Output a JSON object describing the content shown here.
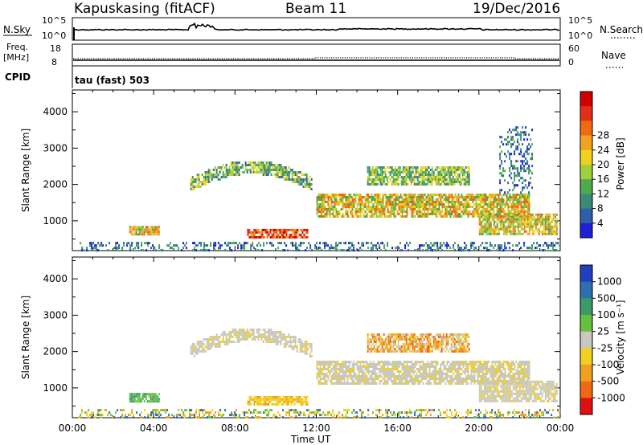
{
  "header": {
    "station": "Kapuskasing (fitACF)",
    "beam": "Beam 11",
    "date": "19/Dec/2016"
  },
  "aux_panels": {
    "nsky_label": "N.Sky",
    "nsky_ticks": [
      "10^5",
      "10^0"
    ],
    "nsearch_label": "N.Search",
    "nsearch_ticks": [
      "10^5",
      "10^0"
    ],
    "freq_label": "Freq.",
    "freq_unit": "[MHz]",
    "freq_ticks": [
      "18",
      "8"
    ],
    "nave_label": "Nave",
    "nave_ticks": [
      "60",
      "0"
    ],
    "cpid_label": "CPID",
    "cpid_text": "tau (fast) 503"
  },
  "chart_data": [
    {
      "type": "heatmap",
      "name": "power-panel",
      "ylabel": "Slant Range [km]",
      "xlabel": "Time UT",
      "xlim": [
        0,
        24
      ],
      "ylim": [
        180,
        4600
      ],
      "x_ticks": [
        "00:00",
        "04:00",
        "08:00",
        "12:00",
        "16:00",
        "20:00",
        "00:00"
      ],
      "y_ticks": [
        "1000",
        "2000",
        "3000",
        "4000"
      ],
      "y_tick_values": [
        1000,
        2000,
        3000,
        4000
      ],
      "colorbar": {
        "label": "Power [dB]",
        "ticks": [
          "4",
          "8",
          "12",
          "16",
          "20",
          "24",
          "28"
        ],
        "colors": [
          "#1f1fd6",
          "#2c5fa8",
          "#3a8a7a",
          "#4daa4d",
          "#9fcf3a",
          "#f0d020",
          "#f4a020",
          "#ef6a12",
          "#e03018",
          "#d00000"
        ]
      },
      "scatter_regions": [
        {
          "t0": 0.2,
          "t1": 24,
          "r0": 200,
          "r1": 420,
          "level": "low"
        },
        {
          "t0": 2.8,
          "t1": 4.3,
          "r0": 620,
          "r1": 860,
          "level": "strong"
        },
        {
          "t0": 8.6,
          "t1": 11.6,
          "r0": 540,
          "r1": 780,
          "level": "strongest"
        },
        {
          "t0": 5.8,
          "t1": 11.8,
          "r0": 1850,
          "r1": 2700,
          "level": "arc"
        },
        {
          "t0": 12.0,
          "t1": 22.5,
          "r0": 1100,
          "r1": 1750,
          "level": "strong"
        },
        {
          "t0": 14.5,
          "t1": 19.5,
          "r0": 2000,
          "r1": 2500,
          "level": "medium"
        },
        {
          "t0": 20.0,
          "t1": 23.8,
          "r0": 650,
          "r1": 1200,
          "level": "strong"
        },
        {
          "t0": 21.0,
          "t1": 22.6,
          "r0": 1800,
          "r1": 3600,
          "level": "low"
        }
      ]
    },
    {
      "type": "heatmap",
      "name": "velocity-panel",
      "ylabel": "Slant Range [km]",
      "xlabel": "Time UT",
      "xlim": [
        0,
        24
      ],
      "ylim": [
        180,
        4600
      ],
      "x_ticks": [
        "00:00",
        "04:00",
        "08:00",
        "12:00",
        "16:00",
        "20:00",
        "00:00"
      ],
      "y_ticks": [
        "1000",
        "2000",
        "3000",
        "4000"
      ],
      "y_tick_values": [
        1000,
        2000,
        3000,
        4000
      ],
      "colorbar": {
        "label": "Velocity [m s⁻¹]",
        "ticks": [
          "1000",
          "500",
          "100",
          "25",
          "-25",
          "-100",
          "-500",
          "-1000"
        ],
        "colors": [
          "#2040c0",
          "#2f6fb0",
          "#3a9a6a",
          "#66c040",
          "#c8c8c0",
          "#f0d020",
          "#f0a020",
          "#ee6a12",
          "#e01010"
        ]
      },
      "scatter_regions": [
        {
          "t0": 0.2,
          "t1": 24,
          "r0": 200,
          "r1": 420,
          "level": "mixed"
        },
        {
          "t0": 2.8,
          "t1": 4.3,
          "r0": 620,
          "r1": 860,
          "level": "green"
        },
        {
          "t0": 8.6,
          "t1": 11.6,
          "r0": 540,
          "r1": 780,
          "level": "yellow"
        },
        {
          "t0": 5.8,
          "t1": 11.8,
          "r0": 1850,
          "r1": 2700,
          "level": "grey"
        },
        {
          "t0": 12.0,
          "t1": 22.5,
          "r0": 1100,
          "r1": 1750,
          "level": "grey"
        },
        {
          "t0": 14.5,
          "t1": 19.5,
          "r0": 2000,
          "r1": 2500,
          "level": "orange"
        },
        {
          "t0": 20.0,
          "t1": 23.8,
          "r0": 650,
          "r1": 1200,
          "level": "grey"
        }
      ]
    }
  ]
}
